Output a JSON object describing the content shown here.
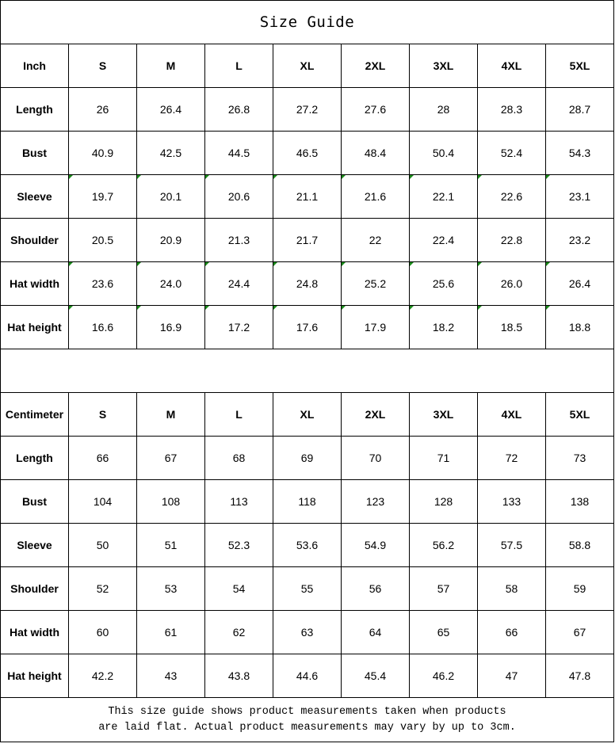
{
  "title": "Size Guide",
  "sizes": [
    "S",
    "M",
    "L",
    "XL",
    "2XL",
    "3XL",
    "4XL",
    "5XL"
  ],
  "inch": {
    "unit_label": "Inch",
    "rows": [
      {
        "label": "Length",
        "values": [
          "26",
          "26.4",
          "26.8",
          "27.2",
          "27.6",
          "28",
          "28.3",
          "28.7"
        ],
        "marked": false
      },
      {
        "label": "Bust",
        "values": [
          "40.9",
          "42.5",
          "44.5",
          "46.5",
          "48.4",
          "50.4",
          "52.4",
          "54.3"
        ],
        "marked": false
      },
      {
        "label": "Sleeve",
        "values": [
          "19.7",
          "20.1",
          "20.6",
          "21.1",
          "21.6",
          "22.1",
          "22.6",
          "23.1"
        ],
        "marked": true
      },
      {
        "label": "Shoulder",
        "values": [
          "20.5",
          "20.9",
          "21.3",
          "21.7",
          "22",
          "22.4",
          "22.8",
          "23.2"
        ],
        "marked": false
      },
      {
        "label": "Hat width",
        "values": [
          "23.6",
          "24.0",
          "24.4",
          "24.8",
          "25.2",
          "25.6",
          "26.0",
          "26.4"
        ],
        "marked": true
      },
      {
        "label": "Hat height",
        "values": [
          "16.6",
          "16.9",
          "17.2",
          "17.6",
          "17.9",
          "18.2",
          "18.5",
          "18.8"
        ],
        "marked": true
      }
    ]
  },
  "centimeter": {
    "unit_label": "Centimeter",
    "rows": [
      {
        "label": "Length",
        "values": [
          "66",
          "67",
          "68",
          "69",
          "70",
          "71",
          "72",
          "73"
        ],
        "marked": false
      },
      {
        "label": "Bust",
        "values": [
          "104",
          "108",
          "113",
          "118",
          "123",
          "128",
          "133",
          "138"
        ],
        "marked": false
      },
      {
        "label": "Sleeve",
        "values": [
          "50",
          "51",
          "52.3",
          "53.6",
          "54.9",
          "56.2",
          "57.5",
          "58.8"
        ],
        "marked": false
      },
      {
        "label": "Shoulder",
        "values": [
          "52",
          "53",
          "54",
          "55",
          "56",
          "57",
          "58",
          "59"
        ],
        "marked": false
      },
      {
        "label": "Hat width",
        "values": [
          "60",
          "61",
          "62",
          "63",
          "64",
          "65",
          "66",
          "67"
        ],
        "marked": false
      },
      {
        "label": "Hat height",
        "values": [
          "42.2",
          "43",
          "43.8",
          "44.6",
          "45.4",
          "46.2",
          "47",
          "47.8"
        ],
        "marked": false
      }
    ]
  },
  "note": {
    "line1": "This size guide shows product measurements taken when products",
    "line2": "are laid flat. Actual product measurements may vary by up to 3cm."
  },
  "colors": {
    "border": "#000000",
    "comment_marker": "#1a8a1a"
  }
}
